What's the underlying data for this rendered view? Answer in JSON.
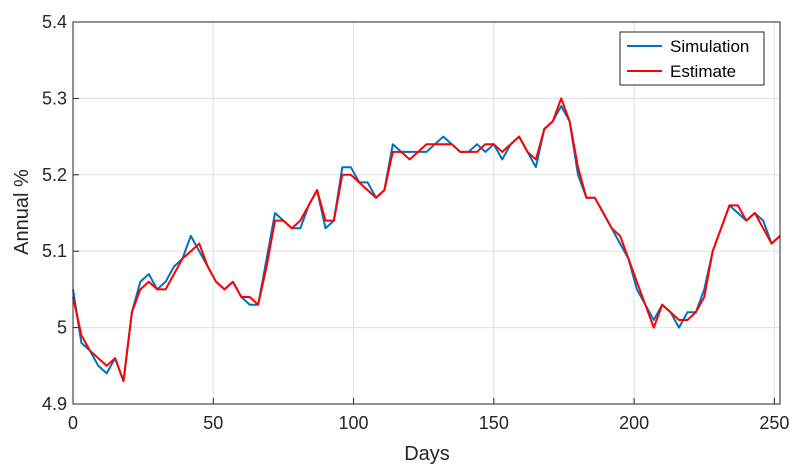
{
  "chart_data": {
    "type": "line",
    "title": "",
    "xlabel": "Days",
    "ylabel": "Annual %",
    "xlim": [
      0,
      252
    ],
    "ylim": [
      4.9,
      5.4
    ],
    "xticks": [
      0,
      50,
      100,
      150,
      200,
      250
    ],
    "xtick_labels": [
      "0",
      "50",
      "100",
      "150",
      "200",
      "250"
    ],
    "yticks": [
      4.9,
      5.0,
      5.1,
      5.2,
      5.3,
      5.4
    ],
    "ytick_labels": [
      "4.9",
      "5",
      "5.1",
      "5.2",
      "5.3",
      "5.4"
    ],
    "grid": true,
    "legend_position": "top-right",
    "series": [
      {
        "name": "Simulation",
        "color": "#0072BD",
        "x": [
          0,
          3,
          6,
          9,
          12,
          15,
          18,
          21,
          24,
          27,
          30,
          33,
          36,
          39,
          42,
          45,
          48,
          51,
          54,
          57,
          60,
          63,
          66,
          69,
          72,
          75,
          78,
          81,
          84,
          87,
          90,
          93,
          96,
          99,
          102,
          105,
          108,
          111,
          114,
          117,
          120,
          123,
          126,
          129,
          132,
          135,
          138,
          141,
          144,
          147,
          150,
          153,
          156,
          159,
          162,
          165,
          168,
          171,
          174,
          177,
          180,
          183,
          186,
          189,
          192,
          195,
          198,
          201,
          204,
          207,
          210,
          213,
          216,
          219,
          222,
          225,
          228,
          231,
          234,
          237,
          240,
          243,
          246,
          249,
          252
        ],
        "values": [
          5.05,
          4.98,
          4.97,
          4.95,
          4.94,
          4.96,
          4.93,
          5.02,
          5.06,
          5.07,
          5.05,
          5.06,
          5.08,
          5.09,
          5.12,
          5.1,
          5.08,
          5.06,
          5.05,
          5.06,
          5.04,
          5.03,
          5.03,
          5.09,
          5.15,
          5.14,
          5.13,
          5.13,
          5.16,
          5.18,
          5.13,
          5.14,
          5.21,
          5.21,
          5.19,
          5.19,
          5.17,
          5.18,
          5.24,
          5.23,
          5.23,
          5.23,
          5.23,
          5.24,
          5.25,
          5.24,
          5.23,
          5.23,
          5.24,
          5.23,
          5.24,
          5.22,
          5.24,
          5.25,
          5.23,
          5.21,
          5.26,
          5.27,
          5.29,
          5.27,
          5.2,
          5.17,
          5.17,
          5.15,
          5.13,
          5.11,
          5.09,
          5.05,
          5.03,
          5.01,
          5.03,
          5.02,
          5.0,
          5.02,
          5.02,
          5.05,
          5.1,
          5.13,
          5.16,
          5.15,
          5.14,
          5.15,
          5.14,
          5.11,
          5.12
        ]
      },
      {
        "name": "Estimate",
        "color": "#FF0000",
        "x": [
          0,
          3,
          6,
          9,
          12,
          15,
          18,
          21,
          24,
          27,
          30,
          33,
          36,
          39,
          42,
          45,
          48,
          51,
          54,
          57,
          60,
          63,
          66,
          69,
          72,
          75,
          78,
          81,
          84,
          87,
          90,
          93,
          96,
          99,
          102,
          105,
          108,
          111,
          114,
          117,
          120,
          123,
          126,
          129,
          132,
          135,
          138,
          141,
          144,
          147,
          150,
          153,
          156,
          159,
          162,
          165,
          168,
          171,
          174,
          177,
          180,
          183,
          186,
          189,
          192,
          195,
          198,
          201,
          204,
          207,
          210,
          213,
          216,
          219,
          222,
          225,
          228,
          231,
          234,
          237,
          240,
          243,
          246,
          249,
          252
        ],
        "values": [
          5.04,
          4.99,
          4.97,
          4.96,
          4.95,
          4.96,
          4.93,
          5.02,
          5.05,
          5.06,
          5.05,
          5.05,
          5.07,
          5.09,
          5.1,
          5.11,
          5.08,
          5.06,
          5.05,
          5.06,
          5.04,
          5.04,
          5.03,
          5.08,
          5.14,
          5.14,
          5.13,
          5.14,
          5.16,
          5.18,
          5.14,
          5.14,
          5.2,
          5.2,
          5.19,
          5.18,
          5.17,
          5.18,
          5.23,
          5.23,
          5.22,
          5.23,
          5.24,
          5.24,
          5.24,
          5.24,
          5.23,
          5.23,
          5.23,
          5.24,
          5.24,
          5.23,
          5.24,
          5.25,
          5.23,
          5.22,
          5.26,
          5.27,
          5.3,
          5.27,
          5.21,
          5.17,
          5.17,
          5.15,
          5.13,
          5.12,
          5.09,
          5.06,
          5.03,
          5.0,
          5.03,
          5.02,
          5.01,
          5.01,
          5.02,
          5.04,
          5.1,
          5.13,
          5.16,
          5.16,
          5.14,
          5.15,
          5.13,
          5.11,
          5.12
        ]
      }
    ]
  }
}
